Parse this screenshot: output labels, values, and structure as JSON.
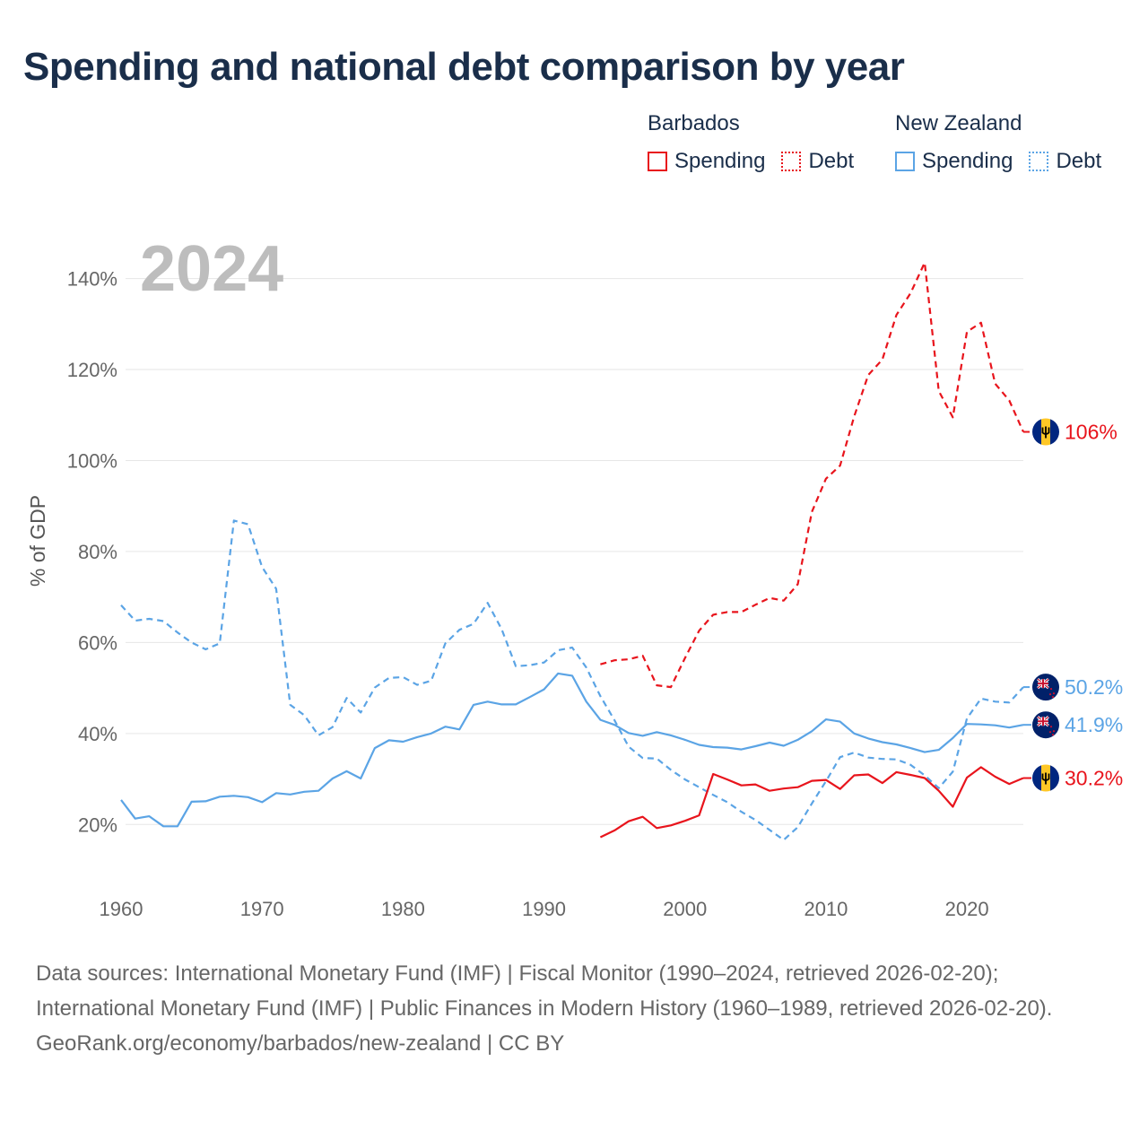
{
  "title": "Spending and national debt comparison by year",
  "legend": {
    "groups": [
      {
        "country": "Barbados",
        "color": "#e8141c",
        "items": [
          {
            "label": "Spending",
            "style": "solid"
          },
          {
            "label": "Debt",
            "style": "dotted"
          }
        ]
      },
      {
        "country": "New Zealand",
        "color": "#5ba4e5",
        "items": [
          {
            "label": "Spending",
            "style": "solid"
          },
          {
            "label": "Debt",
            "style": "dotted"
          }
        ]
      }
    ]
  },
  "chart_data": {
    "type": "line",
    "year_label": "2024",
    "ylabel": "% of GDP",
    "xlabel": "",
    "xlim": [
      1960,
      2024
    ],
    "ylim": [
      10,
      148
    ],
    "x_ticks": [
      1960,
      1970,
      1980,
      1990,
      2000,
      2010,
      2020
    ],
    "y_ticks": [
      20,
      40,
      60,
      80,
      100,
      120,
      140
    ],
    "y_tick_labels": [
      "20%",
      "40%",
      "60%",
      "80%",
      "100%",
      "120%",
      "140%"
    ],
    "series": [
      {
        "name": "New Zealand Debt",
        "country": "New Zealand",
        "metric": "Debt",
        "color": "#5ba4e5",
        "dash": "dashed",
        "start_year": 1960,
        "end_label": "50.2%",
        "values": [
          68.2,
          64.8,
          65.2,
          64.7,
          62.2,
          60.0,
          58.5,
          59.8,
          86.8,
          86.0,
          76.6,
          71.8,
          46.3,
          44.0,
          39.6,
          41.4,
          47.8,
          44.6,
          50.1,
          52.2,
          52.4,
          50.7,
          51.6,
          59.8,
          62.8,
          64.1,
          68.7,
          62.9,
          54.8,
          55.0,
          55.6,
          58.3,
          58.9,
          54.5,
          48.2,
          42.9,
          37.1,
          34.6,
          34.5,
          32.0,
          29.9,
          28.2,
          26.5,
          24.9,
          22.8,
          21.0,
          18.8,
          16.6,
          19.4,
          24.6,
          29.5,
          34.8,
          35.8,
          34.7,
          34.4,
          34.3,
          33.1,
          30.8,
          28.0,
          31.6,
          43.3,
          47.7,
          47.0,
          46.8,
          50.2
        ]
      },
      {
        "name": "New Zealand Spending",
        "country": "New Zealand",
        "metric": "Spending",
        "color": "#5ba4e5",
        "dash": "solid",
        "start_year": 1960,
        "end_label": "41.9%",
        "values": [
          25.4,
          21.3,
          21.8,
          19.6,
          19.6,
          25.0,
          25.1,
          26.1,
          26.3,
          26.0,
          24.9,
          26.9,
          26.6,
          27.2,
          27.4,
          30.1,
          31.7,
          30.1,
          36.8,
          38.5,
          38.2,
          39.2,
          40.0,
          41.5,
          40.9,
          46.3,
          47.0,
          46.4,
          46.4,
          48.0,
          49.7,
          53.2,
          52.7,
          47.0,
          43.0,
          41.9,
          40.1,
          39.5,
          40.3,
          39.6,
          38.6,
          37.5,
          37.0,
          36.9,
          36.5,
          37.2,
          38.0,
          37.3,
          38.6,
          40.5,
          43.1,
          42.6,
          40.0,
          38.9,
          38.1,
          37.6,
          36.8,
          35.9,
          36.4,
          39.0,
          42.1,
          42.0,
          41.8,
          41.3,
          41.9
        ]
      },
      {
        "name": "Barbados Debt",
        "country": "Barbados",
        "metric": "Debt",
        "color": "#e8141c",
        "dash": "dashed",
        "start_year": 1994,
        "end_label": "106%",
        "values": [
          55.2,
          56.1,
          56.3,
          57.1,
          50.6,
          50.2,
          56.6,
          62.6,
          66.1,
          66.7,
          66.7,
          68.3,
          69.8,
          69.2,
          72.8,
          88.7,
          96.0,
          98.9,
          109.7,
          118.8,
          122.2,
          132.0,
          136.8,
          143.5,
          115.3,
          109.5,
          128.3,
          130.3,
          116.9,
          113.2,
          106.3
        ]
      },
      {
        "name": "Barbados Spending",
        "country": "Barbados",
        "metric": "Spending",
        "color": "#e8141c",
        "dash": "solid",
        "start_year": 1994,
        "end_label": "30.2%",
        "values": [
          17.2,
          18.7,
          20.7,
          21.7,
          19.2,
          19.8,
          20.8,
          22.0,
          31.1,
          29.9,
          28.6,
          28.8,
          27.4,
          27.9,
          28.2,
          29.6,
          29.8,
          27.8,
          30.8,
          31.0,
          29.1,
          31.5,
          30.9,
          30.2,
          27.4,
          23.9,
          30.3,
          32.6,
          30.5,
          28.9,
          30.2
        ]
      }
    ]
  },
  "footer": {
    "sources": "Data sources: International Monetary Fund (IMF) | Fiscal Monitor (1990–2024, retrieved 2026-02-20); International Monetary Fund (IMF) | Public Finances in Modern History (1960–1989, retrieved 2026-02-20).",
    "credit": "GeoRank.org/economy/barbados/new-zealand | CC BY"
  }
}
